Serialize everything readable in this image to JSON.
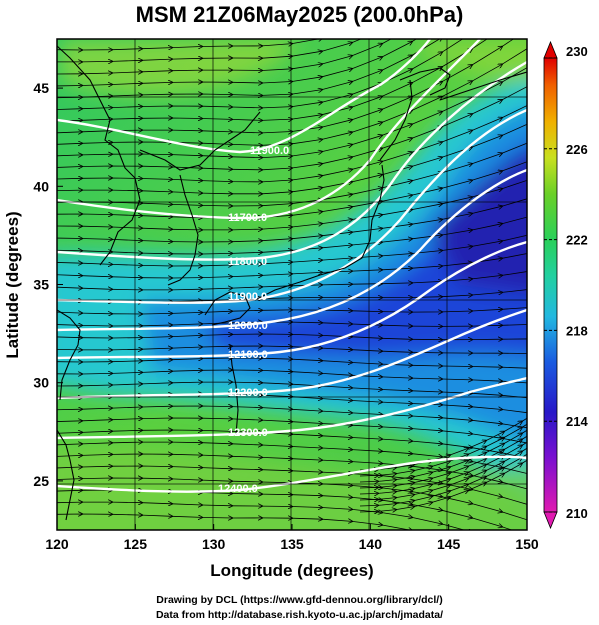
{
  "title": "MSM 21Z06May2025 (200.0hPa)",
  "xlabel": "Longitude (degrees)",
  "ylabel": "Latitude  (degrees)",
  "credits": {
    "line1": "Drawing by DCL (https://www.gfd-dennou.org/library/dcl/)",
    "line2": "Data from http://database.rish.kyoto-u.ac.jp/arch/jmadata/"
  },
  "chart_data": {
    "type": "heatmap",
    "xlim": [
      120,
      150
    ],
    "ylim": [
      22.5,
      47.5
    ],
    "xticks": [
      "120",
      "125",
      "130",
      "135",
      "140",
      "145",
      "150"
    ],
    "yticks": [
      "25",
      "30",
      "35",
      "40",
      "45"
    ],
    "colorbar": {
      "range": [
        210,
        230
      ],
      "ticks": [
        "210",
        "214",
        "218",
        "222",
        "226",
        "230"
      ],
      "colors": [
        "#e01ab0",
        "#3320c8",
        "#1a5be0",
        "#22c8e0",
        "#2ad06a",
        "#48cf30",
        "#c8e020",
        "#f0c000",
        "#f06000",
        "#e00000"
      ]
    },
    "contour_labels": [
      "11900.0",
      "11700.0",
      "11800.0",
      "11900.0",
      "12000.0",
      "12100.0",
      "12200.0",
      "12300.0",
      "12400.0"
    ]
  }
}
